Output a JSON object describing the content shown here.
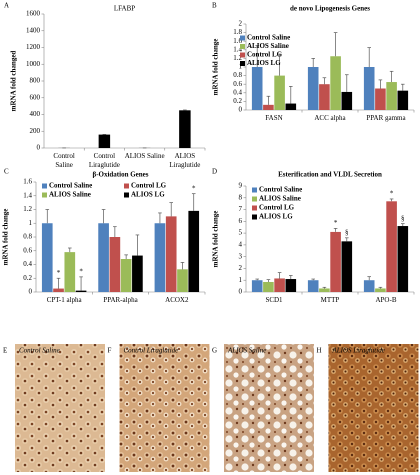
{
  "chart_data": [
    {
      "type": "bar",
      "panel": "A",
      "title": "LFABP",
      "y_label": "mRNA fold changed",
      "categories": [
        "Control Saline",
        "Control Liraglutide",
        "ALIOS Saline",
        "ALIOS Liraglutide"
      ],
      "values": [
        1,
        160,
        1,
        450
      ],
      "errors": [
        0,
        3,
        0,
        4
      ],
      "color": "#000000",
      "ylim": [
        0,
        1600
      ],
      "yticks": [
        0,
        200,
        400,
        600,
        800,
        1000,
        1200,
        1400,
        1600
      ]
    },
    {
      "type": "bar",
      "panel": "B",
      "title": "de novo Lipogenesis Genes",
      "y_label": "mRNA fold change",
      "categories": [
        "FASN",
        "ACC alpha",
        "PPAR gamma"
      ],
      "series": [
        {
          "name": "Control Saline",
          "color": "#4f81bd",
          "values": [
            1.0,
            1.0,
            1.0
          ],
          "errors": [
            0.5,
            0.2,
            0.45
          ]
        },
        {
          "name": "Control LG",
          "color": "#c0504d",
          "values": [
            0.12,
            0.6,
            0.5
          ],
          "errors": [
            0.2,
            0.15,
            0.2
          ]
        },
        {
          "name": "ALIOS Saline",
          "color": "#9bbb59",
          "values": [
            0.8,
            1.25,
            0.65
          ],
          "errors": [
            0.5,
            0.55,
            0.25
          ]
        },
        {
          "name": "ALIOS LG",
          "color": "#000000",
          "values": [
            0.15,
            0.42,
            0.45
          ],
          "errors": [
            0.4,
            0.4,
            0.15
          ]
        }
      ],
      "ylim": [
        0,
        2
      ],
      "yticks": [
        0,
        0.2,
        0.4,
        0.6,
        0.8,
        1,
        1.2,
        1.4,
        1.6,
        1.8,
        2
      ]
    },
    {
      "type": "bar",
      "panel": "C",
      "title": "β-Oxidation Genes",
      "y_label": "mRNA fold change",
      "categories": [
        "CPT-1 alpha",
        "PPAR-alpha",
        "ACOX2"
      ],
      "series": [
        {
          "name": "Control Saline",
          "color": "#4f81bd",
          "values": [
            1.0,
            1.0,
            1.0
          ],
          "errors": [
            0.2,
            0.2,
            0.15
          ]
        },
        {
          "name": "Control LG",
          "color": "#c0504d",
          "values": [
            0.05,
            0.8,
            1.1
          ],
          "errors": [
            0.15,
            0.15,
            0.2
          ],
          "annotations": [
            "*",
            null,
            null
          ]
        },
        {
          "name": "ALIOS Saline",
          "color": "#9bbb59",
          "values": [
            0.58,
            0.48,
            0.33
          ],
          "errors": [
            0.06,
            0.06,
            0.1
          ]
        },
        {
          "name": "ALIOS LG",
          "color": "#000000",
          "values": [
            0.02,
            0.53,
            1.18
          ],
          "errors": [
            0.2,
            0.3,
            0.25
          ],
          "annotations": [
            "*",
            null,
            "*"
          ]
        }
      ],
      "ylim": [
        0,
        1.6
      ],
      "yticks": [
        0,
        0.2,
        0.4,
        0.6,
        0.8,
        1,
        1.2,
        1.4,
        1.6
      ]
    },
    {
      "type": "bar",
      "panel": "D",
      "title": "Esterification and VLDL Secretion",
      "y_label": "mRNA fold change",
      "categories": [
        "SCD1",
        "MTTP",
        "APO-B"
      ],
      "series": [
        {
          "name": "Control Saline",
          "color": "#4f81bd",
          "values": [
            1.0,
            1.0,
            1.0
          ],
          "errors": [
            0.1,
            0.1,
            0.3
          ]
        },
        {
          "name": "ALIOS Saline",
          "color": "#9bbb59",
          "values": [
            0.85,
            0.3,
            0.3
          ],
          "errors": [
            0.2,
            0.1,
            0.1
          ]
        },
        {
          "name": "Control LG",
          "color": "#c0504d",
          "values": [
            1.15,
            5.1,
            7.7
          ],
          "errors": [
            0.5,
            0.3,
            0.2
          ],
          "annotations": [
            null,
            "*",
            "*"
          ]
        },
        {
          "name": "ALIOS LG",
          "color": "#000000",
          "values": [
            1.1,
            4.3,
            5.6
          ],
          "errors": [
            0.3,
            0.3,
            0.2
          ],
          "annotations": [
            null,
            "§",
            "§"
          ]
        }
      ],
      "ylim": [
        0,
        9
      ],
      "yticks": [
        0,
        1,
        2,
        3,
        4,
        5,
        6,
        7,
        8,
        9
      ]
    }
  ],
  "images": [
    {
      "panel": "E",
      "caption": "Control Saline"
    },
    {
      "panel": "F",
      "caption": "Control Liraglutide"
    },
    {
      "panel": "G",
      "caption": "ALIOS Saline"
    },
    {
      "panel": "H",
      "caption": "ALIOS Liraglutide"
    }
  ]
}
